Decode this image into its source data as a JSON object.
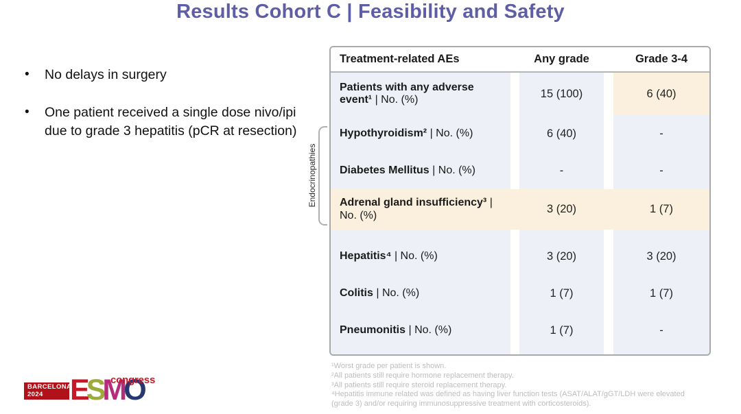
{
  "slide": {
    "title": "Results Cohort C | Feasibility and Safety",
    "bullet_marker": "•",
    "bullets": [
      "No delays in surgery",
      "One patient received a single dose nivo/ipi due to grade 3 hepatitis (pCR at resection)"
    ]
  },
  "table": {
    "columns": [
      "Treatment-related AEs",
      "Any grade",
      "Grade 3-4"
    ],
    "group_label": "Endocrinopathies",
    "rows": [
      {
        "name": "Patients with any adverse event¹",
        "suffix": "| No. (%)",
        "any_grade": "15 (100)",
        "grade_3_4": "6 (40)",
        "highlight": "grade-3-4-cell"
      },
      {
        "name": "Hypothyroidism²",
        "suffix": "| No. (%)",
        "any_grade": "6 (40)",
        "grade_3_4": "-",
        "highlight": null
      },
      {
        "name": "Diabetes Mellitus",
        "suffix": "| No. (%)",
        "any_grade": "-",
        "grade_3_4": "-",
        "highlight": null
      },
      {
        "name": "Adrenal gland insufficiency³",
        "suffix": "| No. (%)",
        "any_grade": "3 (20)",
        "grade_3_4": "1 (7)",
        "highlight": "full-row"
      },
      {
        "name": "Hepatitis⁴",
        "suffix": "| No. (%)",
        "any_grade": "3 (20)",
        "grade_3_4": "3 (20)",
        "highlight": null
      },
      {
        "name": "Colitis",
        "suffix": "| No. (%)",
        "any_grade": "1 (7)",
        "grade_3_4": "1 (7)",
        "highlight": null
      },
      {
        "name": "Pneumonitis",
        "suffix": "| No. (%)",
        "any_grade": "1 (7)",
        "grade_3_4": "-",
        "highlight": null
      }
    ]
  },
  "footnotes": [
    "¹Worst grade per patient is shown.",
    "²All patients still require hormone replacement therapy.",
    "³All patients still require steroid replacement therapy.",
    "⁴Hepatitis immune related was defined as having liver function tests (ASAT/ALAT/gGT/LDH were elevated (grade 3) and/or requiring immunosuppressive treatment with corticosteroids)."
  ],
  "logo": {
    "location": "BARCELONA",
    "year": "2024",
    "brand_letters": [
      "E",
      "S",
      "M",
      "O"
    ],
    "suffix": "congress"
  },
  "colors": {
    "title_purple": "#5e5ea6",
    "cell_blue": "#edf1f7",
    "highlight_peach": "#fbf0dd",
    "table_border_gray": "#a9a9a9",
    "footnote_gray": "#bdbdbd",
    "logo_red": "#c41a27",
    "logo_green": "#9cab3c",
    "logo_magenta": "#b52d7a",
    "logo_navy": "#26386f",
    "logo_box_red": "#b11219"
  }
}
